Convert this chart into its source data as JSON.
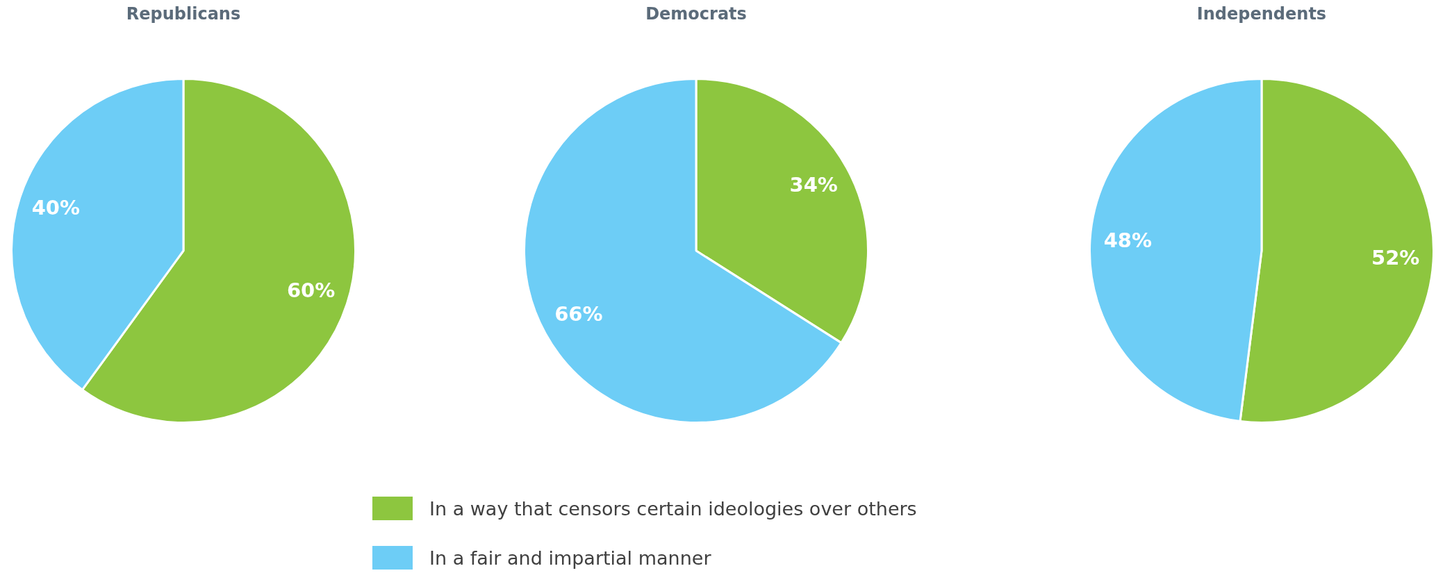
{
  "chart_data": [
    {
      "type": "pie",
      "title": "Republicans",
      "categories": [
        null,
        null
      ],
      "values": [
        60,
        40
      ],
      "value_labels": [
        "60%",
        "40%"
      ],
      "colors": [
        "#8dc63f",
        "#6dcdf6"
      ],
      "legend": false
    },
    {
      "type": "pie",
      "title": "Democrats",
      "categories": [
        "In a way that censors certain ideologies over others",
        "In a fair and impartial manner"
      ],
      "values": [
        34,
        66
      ],
      "value_labels": [
        "34%",
        "66%"
      ],
      "colors": [
        "#8dc63f",
        "#6dcdf6"
      ],
      "legend": "bottom"
    },
    {
      "type": "pie",
      "title": "Independents",
      "categories": [
        null,
        null
      ],
      "values": [
        52,
        48
      ],
      "value_labels": [
        "52%",
        "48%"
      ],
      "colors": [
        "#8dc63f",
        "#6dcdf6"
      ],
      "legend": false
    }
  ]
}
